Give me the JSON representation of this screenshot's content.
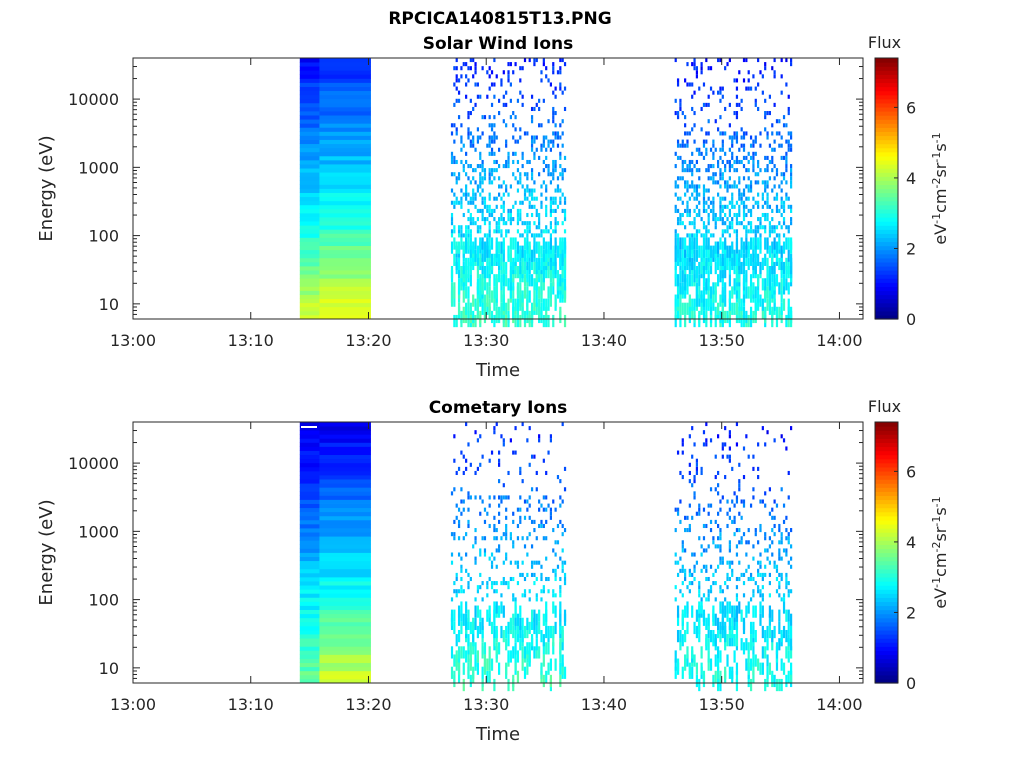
{
  "figure": {
    "filename": "RPCICA140815T13.PNG"
  },
  "chart_data": [
    {
      "type": "heatmap",
      "title": "Solar Wind Ions",
      "xlabel": "Time",
      "ylabel": "Energy (eV)",
      "y_scale": "log",
      "ylim": [
        6,
        40000
      ],
      "xlim": [
        "13:00",
        "14:02"
      ],
      "x_ticks": [
        "13:00",
        "13:10",
        "13:20",
        "13:30",
        "13:40",
        "13:50",
        "14:00"
      ],
      "y_ticks": [
        "10",
        "100",
        "1000",
        "10000"
      ],
      "colorbar": {
        "label_top": "Flux",
        "unit_label": "eV-1cm-2sr-1s-1",
        "ticks": [
          "0",
          "2",
          "4",
          "6"
        ],
        "range": [
          0,
          7.4
        ],
        "colormap": "jet"
      },
      "data_segments": [
        {
          "start": "13:14:10",
          "end": "13:15:50",
          "kind": "dense_block",
          "flux_low": 4.3,
          "flux_mid": 2.6,
          "flux_high": 1.0
        },
        {
          "start": "13:15:50",
          "end": "13:20:10",
          "kind": "dense_block",
          "flux_low": 4.6,
          "flux_mid": 2.8,
          "flux_high": 1.2
        },
        {
          "start": "13:27:00",
          "end": "13:36:40",
          "kind": "sparse",
          "flux_low": 3.2,
          "flux_mid": 2.4,
          "flux_high": 1.1
        },
        {
          "start": "13:46:00",
          "end": "13:55:50",
          "kind": "sparse",
          "flux_low": 3.0,
          "flux_mid": 2.3,
          "flux_high": 1.0
        }
      ]
    },
    {
      "type": "heatmap",
      "title": "Cometary Ions",
      "xlabel": "Time",
      "ylabel": "Energy (eV)",
      "y_scale": "log",
      "ylim": [
        6,
        40000
      ],
      "xlim": [
        "13:00",
        "14:02"
      ],
      "x_ticks": [
        "13:00",
        "13:10",
        "13:20",
        "13:30",
        "13:40",
        "13:50",
        "14:00"
      ],
      "y_ticks": [
        "10",
        "100",
        "1000",
        "10000"
      ],
      "colorbar": {
        "label_top": "Flux",
        "unit_label": "eV-1cm-2sr-1s-1",
        "ticks": [
          "0",
          "2",
          "4",
          "6"
        ],
        "range": [
          0,
          7.4
        ],
        "colormap": "jet"
      },
      "data_segments": [
        {
          "start": "13:14:10",
          "end": "13:15:50",
          "kind": "dense_block",
          "flux_low": 3.6,
          "flux_mid": 2.4,
          "flux_high": 0.6
        },
        {
          "start": "13:15:50",
          "end": "13:20:10",
          "kind": "dense_block",
          "flux_low": 4.3,
          "flux_mid": 2.6,
          "flux_high": 0.7
        },
        {
          "start": "13:27:00",
          "end": "13:36:40",
          "kind": "sparse",
          "flux_low": 3.2,
          "flux_mid": 2.4,
          "flux_high": 1.1
        },
        {
          "start": "13:46:00",
          "end": "13:55:50",
          "kind": "sparse",
          "flux_low": 3.0,
          "flux_mid": 2.3,
          "flux_high": 1.0
        }
      ]
    }
  ]
}
